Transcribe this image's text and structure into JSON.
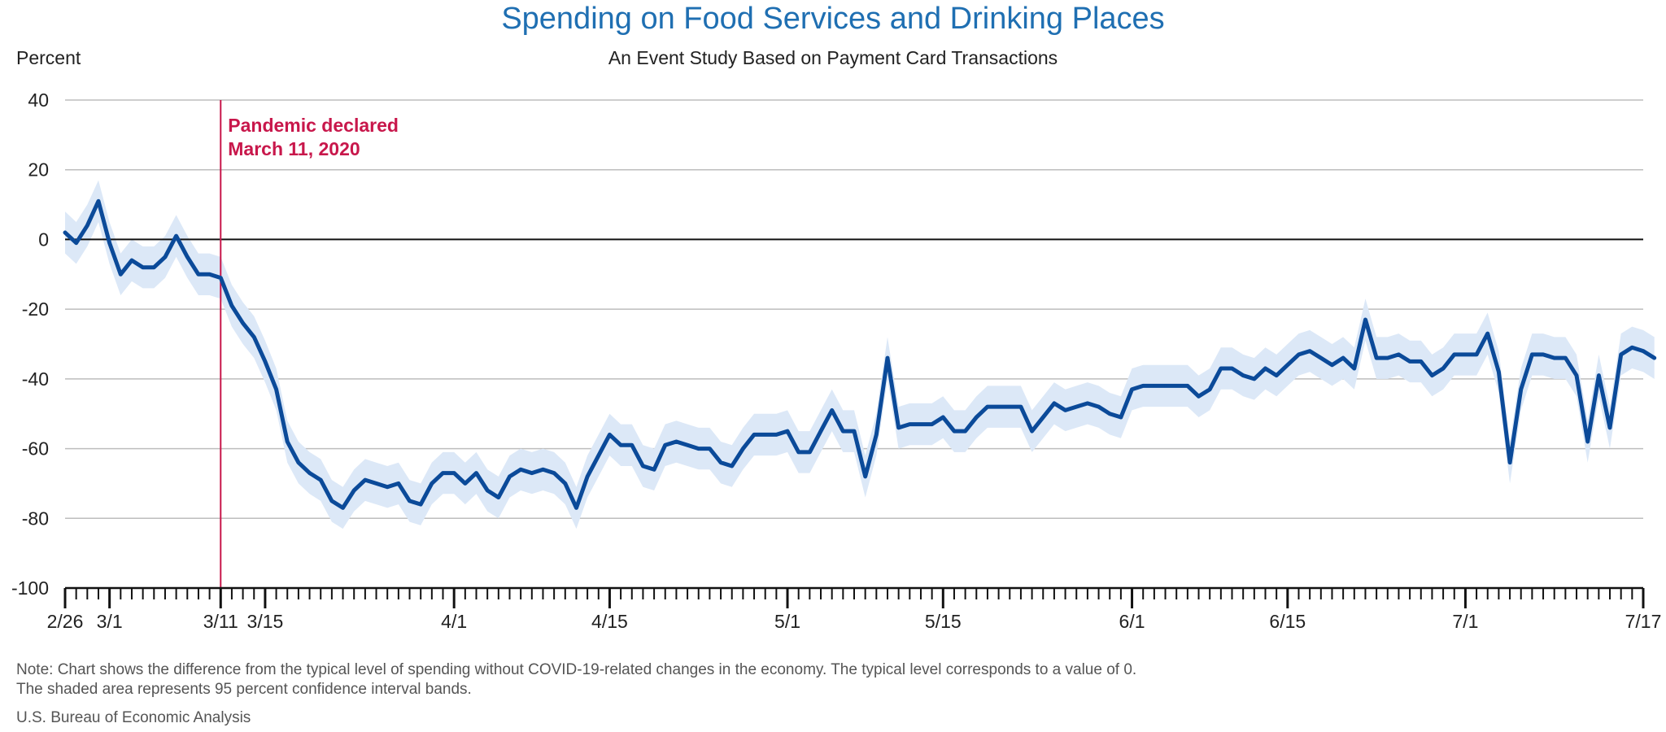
{
  "title": "Spending on Food Services and Drinking Places",
  "subtitle": "An Event Study Based on Payment Card Transactions",
  "ylabel": "Percent",
  "note_line1": "Note: Chart shows the difference from the typical level of spending without COVID-19-related changes in the economy. The typical level corresponds to a value of 0.",
  "note_line2": "The shaded area represents 95 percent confidence interval bands.",
  "source": "U.S. Bureau of Economic Analysis",
  "colors": {
    "line": "#0b4a99",
    "band": "#dce8f7",
    "event": "#c8174b",
    "title": "#1f6fb2",
    "grid": "#bdbdbd"
  },
  "chart_data": {
    "type": "area",
    "title": "Spending on Food Services and Drinking Places",
    "subtitle": "An Event Study Based on Payment Card Transactions",
    "ylabel": "Percent",
    "ylim": [
      -100,
      40
    ],
    "yticks": [
      40,
      20,
      0,
      -20,
      -40,
      -60,
      -80,
      -100
    ],
    "xrange": [
      "2020-02-26",
      "2020-07-17"
    ],
    "xticks": [
      {
        "date": "2020-02-26",
        "label": "2/26"
      },
      {
        "date": "2020-03-01",
        "label": "3/1"
      },
      {
        "date": "2020-03-11",
        "label": "3/11"
      },
      {
        "date": "2020-03-15",
        "label": "3/15"
      },
      {
        "date": "2020-04-01",
        "label": "4/1"
      },
      {
        "date": "2020-04-15",
        "label": "4/15"
      },
      {
        "date": "2020-05-01",
        "label": "5/1"
      },
      {
        "date": "2020-05-15",
        "label": "5/15"
      },
      {
        "date": "2020-06-01",
        "label": "6/1"
      },
      {
        "date": "2020-06-15",
        "label": "6/15"
      },
      {
        "date": "2020-07-01",
        "label": "7/1"
      },
      {
        "date": "2020-07-17",
        "label": "7/17"
      }
    ],
    "grid": true,
    "annotation": {
      "date": "2020-03-11",
      "line1": "Pandemic declared",
      "line2": "March 11, 2020"
    },
    "series": [
      {
        "name": "",
        "start_date": "2020-02-26",
        "values": [
          2,
          -1,
          4,
          11,
          -1,
          -10,
          -6,
          -8,
          -8,
          -5,
          1,
          -5,
          -10,
          -10,
          -11,
          -19,
          -24,
          -28,
          -35,
          -43,
          -58,
          -64,
          -67,
          -69,
          -75,
          -77,
          -72,
          -69,
          -70,
          -71,
          -70,
          -75,
          -76,
          -70,
          -67,
          -67,
          -70,
          -67,
          -72,
          -74,
          -68,
          -66,
          -67,
          -66,
          -67,
          -70,
          -77,
          -68,
          -62,
          -56,
          -59,
          -59,
          -65,
          -66,
          -59,
          -58,
          -59,
          -60,
          -60,
          -64,
          -65,
          -60,
          -56,
          -56,
          -56,
          -55,
          -61,
          -61,
          -55,
          -49,
          -55,
          -55,
          -68,
          -56,
          -34,
          -54,
          -53,
          -53,
          -53,
          -51,
          -55,
          -55,
          -51,
          -48,
          -48,
          -48,
          -48,
          -55,
          -51,
          -47,
          -49,
          -48,
          -47,
          -48,
          -50,
          -51,
          -43,
          -42,
          -42,
          -42,
          -42,
          -42,
          -45,
          -43,
          -37,
          -37,
          -39,
          -40,
          -37,
          -39,
          -36,
          -33,
          -32,
          -34,
          -36,
          -34,
          -37,
          -23,
          -34,
          -34,
          -33,
          -35,
          -35,
          -39,
          -37,
          -33,
          -33,
          -33,
          -27,
          -38,
          -64,
          -43,
          -33,
          -33,
          -34,
          -34,
          -39,
          -58,
          -39,
          -54,
          -33,
          -31,
          -32,
          -34
        ]
      }
    ],
    "confidence_band": {
      "label": "95 percent confidence interval",
      "half_width": 6
    }
  }
}
